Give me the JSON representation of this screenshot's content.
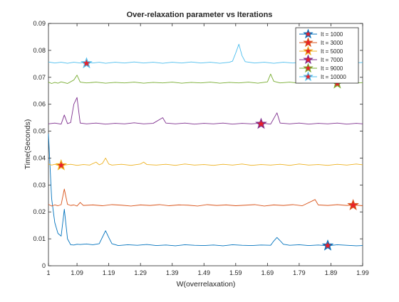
{
  "chart_data": {
    "type": "line",
    "title": "Over-relaxation parameter vs Iterations",
    "xlabel": "W(overrelaxation)",
    "ylabel": "Time(Seconds)",
    "xlim": [
      1,
      1.99
    ],
    "ylim": [
      0,
      0.09
    ],
    "x_ticks": [
      "1",
      "1.09",
      "1.19",
      "1.29",
      "1.39",
      "1.49",
      "1.59",
      "1.69",
      "1.79",
      "1.89",
      "1.99"
    ],
    "y_ticks": [
      "0",
      "0.01",
      "0.02",
      "0.03",
      "0.04",
      "0.05",
      "0.06",
      "0.07",
      "0.08",
      "0.09"
    ],
    "grid": false,
    "legend_position": "top-right",
    "series": [
      {
        "name": "It = 1000",
        "color": "#0072BD",
        "baseline": 0.0075,
        "points": [
          [
            1.0,
            0.049
          ],
          [
            1.01,
            0.025
          ],
          [
            1.02,
            0.016
          ],
          [
            1.03,
            0.012
          ],
          [
            1.04,
            0.011
          ],
          [
            1.05,
            0.021
          ],
          [
            1.06,
            0.01
          ],
          [
            1.07,
            0.0078
          ],
          [
            1.08,
            0.0077
          ],
          [
            1.09,
            0.008
          ],
          [
            1.1,
            0.0079
          ],
          [
            1.12,
            0.0081
          ],
          [
            1.14,
            0.0078
          ],
          [
            1.16,
            0.0082
          ],
          [
            1.18,
            0.013
          ],
          [
            1.19,
            0.0105
          ],
          [
            1.2,
            0.0082
          ],
          [
            1.22,
            0.0075
          ],
          [
            1.25,
            0.0078
          ],
          [
            1.28,
            0.0076
          ],
          [
            1.31,
            0.0079
          ],
          [
            1.34,
            0.0075
          ],
          [
            1.37,
            0.0077
          ],
          [
            1.4,
            0.0074
          ],
          [
            1.43,
            0.0078
          ],
          [
            1.46,
            0.0076
          ],
          [
            1.49,
            0.0075
          ],
          [
            1.52,
            0.0077
          ],
          [
            1.55,
            0.0074
          ],
          [
            1.58,
            0.0078
          ],
          [
            1.61,
            0.0076
          ],
          [
            1.64,
            0.0075
          ],
          [
            1.67,
            0.0077
          ],
          [
            1.7,
            0.0076
          ],
          [
            1.71,
            0.0092
          ],
          [
            1.72,
            0.0105
          ],
          [
            1.73,
            0.0093
          ],
          [
            1.74,
            0.008
          ],
          [
            1.76,
            0.0076
          ],
          [
            1.79,
            0.0078
          ],
          [
            1.82,
            0.0075
          ],
          [
            1.85,
            0.0077
          ],
          [
            1.88,
            0.0074
          ],
          [
            1.91,
            0.0078
          ],
          [
            1.94,
            0.0076
          ],
          [
            1.97,
            0.0074
          ],
          [
            1.99,
            0.0075
          ]
        ],
        "marker": [
          1.88,
          0.0075
        ]
      },
      {
        "name": "It = 3000",
        "color": "#D95319",
        "baseline": 0.0225,
        "points": [
          [
            1.0,
            0.0228
          ],
          [
            1.01,
            0.0222
          ],
          [
            1.02,
            0.0226
          ],
          [
            1.03,
            0.0223
          ],
          [
            1.04,
            0.0227
          ],
          [
            1.05,
            0.0285
          ],
          [
            1.06,
            0.0228
          ],
          [
            1.07,
            0.0224
          ],
          [
            1.08,
            0.0226
          ],
          [
            1.09,
            0.0222
          ],
          [
            1.1,
            0.0235
          ],
          [
            1.11,
            0.0224
          ],
          [
            1.14,
            0.0226
          ],
          [
            1.17,
            0.0223
          ],
          [
            1.2,
            0.0227
          ],
          [
            1.23,
            0.0225
          ],
          [
            1.26,
            0.0222
          ],
          [
            1.29,
            0.0226
          ],
          [
            1.32,
            0.0224
          ],
          [
            1.35,
            0.0227
          ],
          [
            1.38,
            0.0223
          ],
          [
            1.41,
            0.0226
          ],
          [
            1.44,
            0.0225
          ],
          [
            1.47,
            0.0222
          ],
          [
            1.5,
            0.0227
          ],
          [
            1.53,
            0.0224
          ],
          [
            1.56,
            0.0226
          ],
          [
            1.59,
            0.0223
          ],
          [
            1.62,
            0.0225
          ],
          [
            1.65,
            0.0227
          ],
          [
            1.68,
            0.0222
          ],
          [
            1.71,
            0.0226
          ],
          [
            1.74,
            0.0224
          ],
          [
            1.77,
            0.0227
          ],
          [
            1.8,
            0.0223
          ],
          [
            1.83,
            0.024
          ],
          [
            1.84,
            0.0246
          ],
          [
            1.85,
            0.0226
          ],
          [
            1.88,
            0.0224
          ],
          [
            1.91,
            0.0227
          ],
          [
            1.94,
            0.0224
          ],
          [
            1.96,
            0.0226
          ],
          [
            1.99,
            0.0223
          ]
        ],
        "marker": [
          1.96,
          0.0225
        ]
      },
      {
        "name": "It = 5000",
        "color": "#EDB120",
        "baseline": 0.0375,
        "points": [
          [
            1.0,
            0.0378
          ],
          [
            1.01,
            0.0374
          ],
          [
            1.02,
            0.0377
          ],
          [
            1.03,
            0.0373
          ],
          [
            1.04,
            0.0378
          ],
          [
            1.05,
            0.0374
          ],
          [
            1.07,
            0.0377
          ],
          [
            1.09,
            0.0373
          ],
          [
            1.11,
            0.0376
          ],
          [
            1.13,
            0.0374
          ],
          [
            1.15,
            0.0385
          ],
          [
            1.16,
            0.0375
          ],
          [
            1.17,
            0.038
          ],
          [
            1.18,
            0.04
          ],
          [
            1.19,
            0.0378
          ],
          [
            1.2,
            0.0374
          ],
          [
            1.23,
            0.0377
          ],
          [
            1.26,
            0.0373
          ],
          [
            1.29,
            0.0378
          ],
          [
            1.3,
            0.0385
          ],
          [
            1.31,
            0.0376
          ],
          [
            1.34,
            0.0374
          ],
          [
            1.37,
            0.0377
          ],
          [
            1.4,
            0.0373
          ],
          [
            1.43,
            0.0378
          ],
          [
            1.46,
            0.0374
          ],
          [
            1.49,
            0.0376
          ],
          [
            1.52,
            0.0373
          ],
          [
            1.55,
            0.0377
          ],
          [
            1.58,
            0.0374
          ],
          [
            1.61,
            0.0378
          ],
          [
            1.64,
            0.0373
          ],
          [
            1.67,
            0.0376
          ],
          [
            1.7,
            0.0374
          ],
          [
            1.73,
            0.0377
          ],
          [
            1.76,
            0.0373
          ],
          [
            1.79,
            0.0378
          ],
          [
            1.82,
            0.0374
          ],
          [
            1.85,
            0.0376
          ],
          [
            1.88,
            0.0373
          ],
          [
            1.91,
            0.0377
          ],
          [
            1.94,
            0.0374
          ],
          [
            1.97,
            0.0378
          ],
          [
            1.99,
            0.0375
          ]
        ],
        "marker": [
          1.04,
          0.0373
        ]
      },
      {
        "name": "It = 7000",
        "color": "#7E2F8E",
        "baseline": 0.0528,
        "points": [
          [
            1.0,
            0.0527
          ],
          [
            1.02,
            0.053
          ],
          [
            1.04,
            0.0526
          ],
          [
            1.05,
            0.056
          ],
          [
            1.06,
            0.0528
          ],
          [
            1.07,
            0.0532
          ],
          [
            1.08,
            0.06
          ],
          [
            1.09,
            0.0625
          ],
          [
            1.1,
            0.053
          ],
          [
            1.12,
            0.0527
          ],
          [
            1.15,
            0.053
          ],
          [
            1.18,
            0.0526
          ],
          [
            1.21,
            0.0529
          ],
          [
            1.24,
            0.0527
          ],
          [
            1.27,
            0.0531
          ],
          [
            1.3,
            0.0527
          ],
          [
            1.33,
            0.0529
          ],
          [
            1.36,
            0.055
          ],
          [
            1.37,
            0.053
          ],
          [
            1.4,
            0.0527
          ],
          [
            1.43,
            0.053
          ],
          [
            1.46,
            0.0526
          ],
          [
            1.49,
            0.0529
          ],
          [
            1.52,
            0.0527
          ],
          [
            1.55,
            0.053
          ],
          [
            1.58,
            0.0526
          ],
          [
            1.61,
            0.0529
          ],
          [
            1.64,
            0.0527
          ],
          [
            1.67,
            0.053
          ],
          [
            1.7,
            0.0526
          ],
          [
            1.72,
            0.0568
          ],
          [
            1.73,
            0.053
          ],
          [
            1.76,
            0.0527
          ],
          [
            1.79,
            0.053
          ],
          [
            1.82,
            0.0526
          ],
          [
            1.85,
            0.0529
          ],
          [
            1.88,
            0.0527
          ],
          [
            1.91,
            0.053
          ],
          [
            1.94,
            0.0526
          ],
          [
            1.97,
            0.0529
          ],
          [
            1.99,
            0.0527
          ]
        ],
        "marker": [
          1.67,
          0.0527
        ]
      },
      {
        "name": "It = 9000",
        "color": "#77AC30",
        "baseline": 0.068,
        "points": [
          [
            1.0,
            0.0682
          ],
          [
            1.01,
            0.0677
          ],
          [
            1.02,
            0.0681
          ],
          [
            1.03,
            0.0678
          ],
          [
            1.04,
            0.0683
          ],
          [
            1.06,
            0.0677
          ],
          [
            1.08,
            0.069
          ],
          [
            1.09,
            0.0708
          ],
          [
            1.1,
            0.0682
          ],
          [
            1.12,
            0.0679
          ],
          [
            1.15,
            0.0682
          ],
          [
            1.18,
            0.0678
          ],
          [
            1.21,
            0.0681
          ],
          [
            1.24,
            0.0679
          ],
          [
            1.27,
            0.0682
          ],
          [
            1.3,
            0.0678
          ],
          [
            1.33,
            0.0681
          ],
          [
            1.36,
            0.0679
          ],
          [
            1.39,
            0.0682
          ],
          [
            1.42,
            0.0678
          ],
          [
            1.45,
            0.0681
          ],
          [
            1.48,
            0.0679
          ],
          [
            1.51,
            0.0682
          ],
          [
            1.54,
            0.0678
          ],
          [
            1.57,
            0.0681
          ],
          [
            1.6,
            0.0679
          ],
          [
            1.63,
            0.0682
          ],
          [
            1.66,
            0.0678
          ],
          [
            1.69,
            0.0683
          ],
          [
            1.7,
            0.0712
          ],
          [
            1.71,
            0.0685
          ],
          [
            1.73,
            0.0679
          ],
          [
            1.76,
            0.0682
          ],
          [
            1.79,
            0.0678
          ],
          [
            1.82,
            0.0681
          ],
          [
            1.85,
            0.0679
          ],
          [
            1.88,
            0.0682
          ],
          [
            1.91,
            0.0678
          ],
          [
            1.94,
            0.0681
          ],
          [
            1.97,
            0.0679
          ],
          [
            1.99,
            0.068
          ]
        ],
        "marker": [
          1.91,
          0.0677
        ]
      },
      {
        "name": "It = 10000",
        "color": "#4DBEEE",
        "baseline": 0.0755,
        "points": [
          [
            1.0,
            0.0757
          ],
          [
            1.02,
            0.0753
          ],
          [
            1.04,
            0.0756
          ],
          [
            1.06,
            0.0752
          ],
          [
            1.08,
            0.0756
          ],
          [
            1.1,
            0.0753
          ],
          [
            1.12,
            0.0757
          ],
          [
            1.14,
            0.0753
          ],
          [
            1.16,
            0.0756
          ],
          [
            1.18,
            0.0752
          ],
          [
            1.21,
            0.0756
          ],
          [
            1.24,
            0.0753
          ],
          [
            1.27,
            0.0757
          ],
          [
            1.3,
            0.0753
          ],
          [
            1.33,
            0.0756
          ],
          [
            1.36,
            0.0752
          ],
          [
            1.39,
            0.0756
          ],
          [
            1.42,
            0.0753
          ],
          [
            1.45,
            0.0757
          ],
          [
            1.48,
            0.0753
          ],
          [
            1.51,
            0.0756
          ],
          [
            1.54,
            0.0752
          ],
          [
            1.57,
            0.0756
          ],
          [
            1.58,
            0.076
          ],
          [
            1.59,
            0.079
          ],
          [
            1.6,
            0.0823
          ],
          [
            1.61,
            0.078
          ],
          [
            1.62,
            0.0758
          ],
          [
            1.65,
            0.0753
          ],
          [
            1.68,
            0.0756
          ],
          [
            1.71,
            0.0752
          ],
          [
            1.74,
            0.0756
          ],
          [
            1.77,
            0.0753
          ],
          [
            1.8,
            0.0757
          ],
          [
            1.83,
            0.0753
          ],
          [
            1.86,
            0.0756
          ],
          [
            1.89,
            0.0752
          ],
          [
            1.92,
            0.0756
          ],
          [
            1.95,
            0.0753
          ],
          [
            1.99,
            0.0755
          ]
        ],
        "marker": [
          1.12,
          0.0752
        ]
      }
    ],
    "marker_fill": "#E8202A"
  }
}
